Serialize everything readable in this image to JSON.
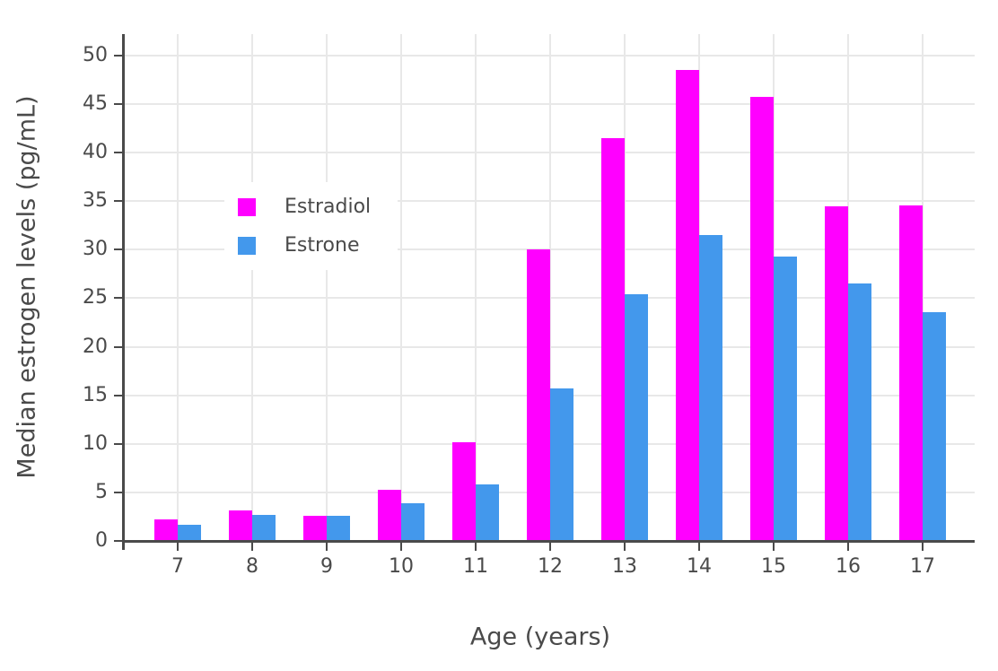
{
  "chart_data": {
    "type": "bar",
    "title": "",
    "xlabel": "Age (years)",
    "ylabel": "Median estrogen levels (pg/mL)",
    "categories": [
      7,
      8,
      9,
      10,
      11,
      12,
      13,
      14,
      15,
      16,
      17
    ],
    "series": [
      {
        "name": "Estradiol",
        "color": "#FF00FF",
        "values": [
          2.2,
          3.1,
          2.6,
          5.3,
          10.2,
          30.0,
          41.5,
          48.5,
          45.7,
          34.5,
          34.6
        ]
      },
      {
        "name": "Estrone",
        "color": "#4398EC",
        "values": [
          1.7,
          2.7,
          2.6,
          3.9,
          5.8,
          15.7,
          25.4,
          31.5,
          29.3,
          26.5,
          23.6
        ]
      }
    ],
    "ylim": [
      0,
      52.2
    ],
    "yticks": [
      0,
      5,
      10,
      15,
      20,
      25,
      30,
      35,
      40,
      45,
      50
    ],
    "grid": true,
    "legend_position": "inside-top-left",
    "colors": {
      "axis": "#4A4A4A",
      "grid": "#E8E8E8",
      "text": "#4A4A4A",
      "background": "#FFFFFF"
    }
  }
}
